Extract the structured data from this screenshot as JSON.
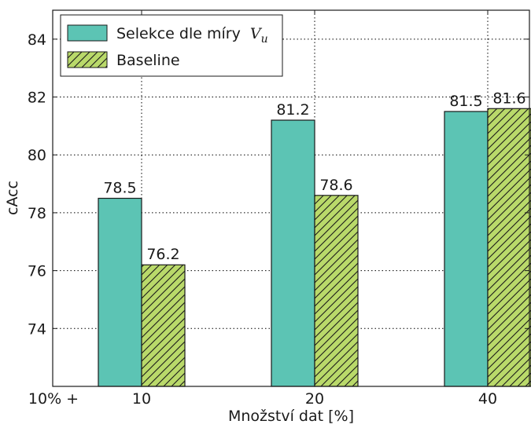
{
  "chart_data": {
    "type": "bar",
    "categories": [
      "10",
      "20",
      "40"
    ],
    "x_prefix_label": "10% +",
    "series": [
      {
        "name": "Selekce dle míry",
        "name_math": "V",
        "name_math_sub": "u",
        "values": [
          78.5,
          81.2,
          81.5
        ],
        "color": "#5cc4b4",
        "pattern": "solid"
      },
      {
        "name": "Baseline",
        "values": [
          76.2,
          78.6,
          81.6
        ],
        "color": "#b9d96a",
        "pattern": "hatch"
      }
    ],
    "data_labels": [
      [
        "78.5",
        "81.2",
        "81.5"
      ],
      [
        "76.2",
        "78.6",
        "81.6"
      ]
    ],
    "xlabel": "Množství dat [%]",
    "ylabel": "cAcc",
    "ylim": [
      72.0,
      85.0
    ],
    "yticks": [
      74,
      76,
      78,
      80,
      82,
      84
    ],
    "grid": true,
    "legend_position": "top-left"
  }
}
